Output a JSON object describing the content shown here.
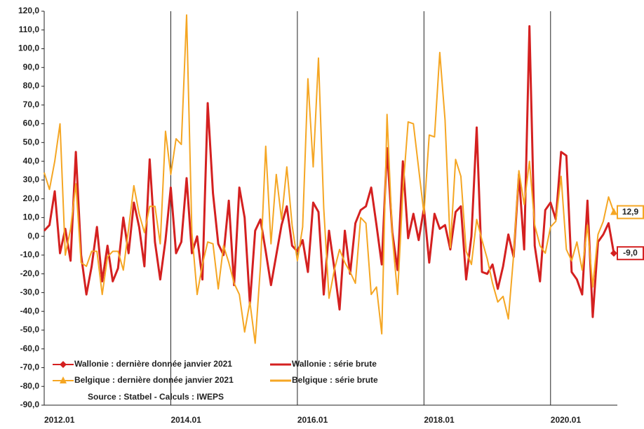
{
  "chart_data": {
    "type": "line",
    "categories": [
      "2012.01",
      "2012.02",
      "2012.03",
      "2012.04",
      "2012.05",
      "2012.06",
      "2012.07",
      "2012.08",
      "2012.09",
      "2012.10",
      "2012.11",
      "2012.12",
      "2013.01",
      "2013.02",
      "2013.03",
      "2013.04",
      "2013.05",
      "2013.06",
      "2013.07",
      "2013.08",
      "2013.09",
      "2013.10",
      "2013.11",
      "2013.12",
      "2014.01",
      "2014.02",
      "2014.03",
      "2014.04",
      "2014.05",
      "2014.06",
      "2014.07",
      "2014.08",
      "2014.09",
      "2014.10",
      "2014.11",
      "2014.12",
      "2015.01",
      "2015.02",
      "2015.03",
      "2015.04",
      "2015.05",
      "2015.06",
      "2015.07",
      "2015.08",
      "2015.09",
      "2015.10",
      "2015.11",
      "2015.12",
      "2016.01",
      "2016.02",
      "2016.03",
      "2016.04",
      "2016.05",
      "2016.06",
      "2016.07",
      "2016.08",
      "2016.09",
      "2016.10",
      "2016.11",
      "2016.12",
      "2017.01",
      "2017.02",
      "2017.03",
      "2017.04",
      "2017.05",
      "2017.06",
      "2017.07",
      "2017.08",
      "2017.09",
      "2017.10",
      "2017.11",
      "2017.12",
      "2018.01",
      "2018.02",
      "2018.03",
      "2018.04",
      "2018.05",
      "2018.06",
      "2018.07",
      "2018.08",
      "2018.09",
      "2018.10",
      "2018.11",
      "2018.12",
      "2019.01",
      "2019.02",
      "2019.03",
      "2019.04",
      "2019.05",
      "2019.06",
      "2019.07",
      "2019.08",
      "2019.09",
      "2019.10",
      "2019.11",
      "2019.12",
      "2020.01",
      "2020.02",
      "2020.03",
      "2020.04",
      "2020.05",
      "2020.06",
      "2020.07",
      "2020.08",
      "2020.09",
      "2020.10",
      "2020.11",
      "2020.12",
      "2021.01"
    ],
    "series": [
      {
        "name": "Wallonie : dernière donnée janvier 2021",
        "color": "#d42020",
        "marker": "diamond",
        "x": [
          "2021.01"
        ],
        "values": [
          -9.0
        ],
        "value_labels": [
          "-9,0"
        ]
      },
      {
        "name": "Wallonie : série brute",
        "color": "#d42020",
        "values": [
          3,
          6,
          24,
          -9,
          4,
          -13,
          45,
          -10,
          -31,
          -16,
          5,
          -24,
          -5,
          -24,
          -17,
          10,
          -9,
          18,
          5,
          -16,
          41,
          -3,
          -23,
          -2,
          26,
          -9,
          -3,
          31,
          -9,
          0,
          -23,
          71,
          23,
          -4,
          -10,
          19,
          -26,
          26,
          10,
          -36,
          3,
          9,
          -8,
          -26,
          -10,
          6,
          16,
          -5,
          -8,
          -2,
          -19,
          18,
          13,
          -31,
          3,
          -17,
          -39,
          3,
          -20,
          7,
          14,
          16,
          26,
          6,
          -15,
          47,
          2,
          -18,
          40,
          -1,
          12,
          -2,
          15,
          -14,
          12,
          4,
          6,
          -7,
          13,
          16,
          -23,
          0,
          58,
          -19,
          -20,
          -15,
          -28,
          -16,
          1,
          -11,
          33,
          -7,
          112,
          -5,
          -24,
          14,
          18,
          9,
          45,
          43,
          -19,
          -23,
          -31,
          19,
          -43,
          -3,
          1,
          7,
          -9.0
        ]
      },
      {
        "name": "Belgique : dernière donnée janvier 2021",
        "color": "#f5a623",
        "marker": "triangle",
        "x": [
          "2021.01"
        ],
        "values": [
          12.9
        ],
        "value_labels": [
          "12,9"
        ]
      },
      {
        "name": "Belgique : série brute",
        "color": "#f5a623",
        "values": [
          34,
          25,
          40,
          60,
          -10,
          4,
          28,
          -14,
          -16,
          -8,
          -8,
          -31,
          -11,
          -8,
          -8,
          -18,
          4,
          27,
          12,
          2,
          16,
          16,
          -4,
          56,
          33,
          52,
          49,
          118,
          2,
          -31,
          -15,
          -3,
          -4,
          -28,
          -5,
          -14,
          -25,
          -31,
          -51,
          -35,
          -57,
          -16,
          48,
          -4,
          33,
          9,
          37,
          6,
          -13,
          5,
          84,
          37,
          95,
          15,
          -33,
          -18,
          -7,
          -14,
          -19,
          -25,
          10,
          7,
          -31,
          -27,
          -52,
          65,
          0,
          -31,
          24,
          61,
          60,
          36,
          12,
          54,
          53,
          98,
          62,
          -6,
          41,
          32,
          -8,
          -15,
          9,
          -2,
          -12,
          -25,
          -35,
          -32,
          -44,
          -10,
          35,
          17,
          40,
          6,
          -5,
          -9,
          5,
          8,
          32,
          -7,
          -13,
          -3,
          -18,
          6,
          -27,
          1,
          8,
          21,
          12.9
        ]
      }
    ],
    "annotations": [
      "Source : Statbel - Calculs : IWEPS"
    ],
    "ylim": [
      -90,
      120
    ],
    "yticks": [
      {
        "value": -90,
        "label": "-90,0"
      },
      {
        "value": -80,
        "label": "-80,0"
      },
      {
        "value": -70,
        "label": "-70,0"
      },
      {
        "value": -60,
        "label": "-60,0"
      },
      {
        "value": -50,
        "label": "-50,0"
      },
      {
        "value": -40,
        "label": "-40,0"
      },
      {
        "value": -30,
        "label": "-30,0"
      },
      {
        "value": -20,
        "label": "-20,0"
      },
      {
        "value": -10,
        "label": "-10,0"
      },
      {
        "value": 0,
        "label": "0,0"
      },
      {
        "value": 10,
        "label": "10,0"
      },
      {
        "value": 20,
        "label": "20,0"
      },
      {
        "value": 30,
        "label": "30,0"
      },
      {
        "value": 40,
        "label": "40,0"
      },
      {
        "value": 50,
        "label": "50,0"
      },
      {
        "value": 60,
        "label": "60,0"
      },
      {
        "value": 70,
        "label": "70,0"
      },
      {
        "value": 80,
        "label": "80,0"
      },
      {
        "value": 90,
        "label": "90,0"
      },
      {
        "value": 100,
        "label": "100,0"
      },
      {
        "value": 110,
        "label": "110,0"
      },
      {
        "value": 120,
        "label": "120,0"
      }
    ],
    "xticks": [
      "2012.01",
      "2014.01",
      "2016.01",
      "2018.01",
      "2020.01"
    ]
  }
}
